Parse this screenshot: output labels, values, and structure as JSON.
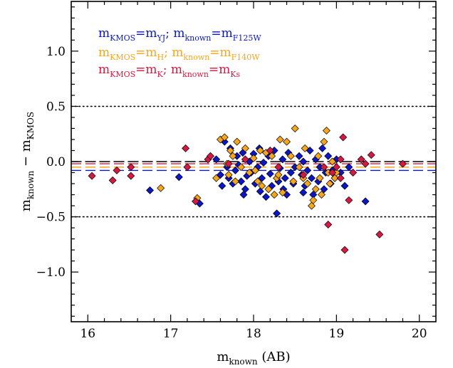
{
  "chart_data": {
    "type": "scatter",
    "title": "",
    "xlabel": "m_known (AB)",
    "ylabel": "m_known − m_KMOS",
    "xlim": [
      15.8,
      20.2
    ],
    "ylim": [
      -1.45,
      1.45
    ],
    "grid": false,
    "legend_position": "top-left",
    "x_ticks": [
      16,
      17,
      18,
      19,
      20
    ],
    "y_ticks": [
      -1.0,
      -0.5,
      0.0,
      0.5,
      1.0
    ],
    "x_tick_labels": [
      "16",
      "17",
      "18",
      "19",
      "20"
    ],
    "y_tick_labels": [
      "−1.0",
      "−0.5",
      "0.0",
      "0.5",
      "1.0"
    ],
    "reference_lines": [
      {
        "y": 0.5,
        "style": "dotted",
        "color": "#000000"
      },
      {
        "y": -0.5,
        "style": "dotted",
        "color": "#000000"
      },
      {
        "y": 0.0,
        "style": "dashed",
        "color": "#000000"
      }
    ],
    "series": [
      {
        "legend": {
          "lhs": "m",
          "lhs_sub": "KMOS",
          "rhs": "m",
          "rhs_sub": "YJ",
          "sep": ";",
          "lhs2": "m",
          "lhs2_sub": "known",
          "rhs2": "m",
          "rhs2_sub": "F125W"
        },
        "color": "#0a16c8",
        "median": -0.08,
        "points": [
          [
            16.75,
            -0.26
          ],
          [
            17.1,
            -0.14
          ],
          [
            17.35,
            -0.38
          ],
          [
            17.55,
            0.02
          ],
          [
            17.6,
            -0.12
          ],
          [
            17.62,
            -0.22
          ],
          [
            17.65,
            0.18
          ],
          [
            17.68,
            -0.05
          ],
          [
            17.7,
            -0.15
          ],
          [
            17.72,
            0.12
          ],
          [
            17.75,
            -0.2
          ],
          [
            17.78,
            -0.08
          ],
          [
            17.8,
            0.05
          ],
          [
            17.82,
            -0.03
          ],
          [
            17.85,
            -0.18
          ],
          [
            17.87,
            0.08
          ],
          [
            17.9,
            -0.25
          ],
          [
            17.92,
            -0.13
          ],
          [
            17.95,
            0.0
          ],
          [
            17.97,
            -0.1
          ],
          [
            18.0,
            0.07
          ],
          [
            18.02,
            -0.2
          ],
          [
            18.05,
            -0.05
          ],
          [
            18.07,
            0.12
          ],
          [
            18.1,
            -0.15
          ],
          [
            18.12,
            -0.01
          ],
          [
            18.15,
            -0.32
          ],
          [
            18.18,
            0.05
          ],
          [
            18.2,
            -0.11
          ],
          [
            18.22,
            -0.22
          ],
          [
            18.25,
            0.1
          ],
          [
            18.28,
            -0.47
          ],
          [
            18.3,
            -0.18
          ],
          [
            18.32,
            -0.06
          ],
          [
            18.35,
            0.02
          ],
          [
            18.38,
            -0.15
          ],
          [
            18.4,
            -0.3
          ],
          [
            18.42,
            0.08
          ],
          [
            18.45,
            -0.1
          ],
          [
            18.48,
            -0.2
          ],
          [
            18.5,
            -0.05
          ],
          [
            18.55,
            0.05
          ],
          [
            18.58,
            -0.12
          ],
          [
            18.6,
            0.0
          ],
          [
            18.62,
            -0.22
          ],
          [
            18.65,
            -0.08
          ],
          [
            18.68,
            0.1
          ],
          [
            18.7,
            -0.15
          ],
          [
            18.72,
            -0.3
          ],
          [
            18.75,
            0.02
          ],
          [
            18.78,
            -0.18
          ],
          [
            18.8,
            -0.05
          ],
          [
            18.83,
            0.12
          ],
          [
            18.85,
            -0.25
          ],
          [
            18.87,
            -0.1
          ],
          [
            18.9,
            0.05
          ],
          [
            18.93,
            -0.2
          ],
          [
            18.95,
            -0.08
          ],
          [
            18.98,
            -0.15
          ],
          [
            19.0,
            0.02
          ],
          [
            19.05,
            -0.1
          ],
          [
            19.1,
            -0.22
          ],
          [
            19.15,
            -0.05
          ],
          [
            19.35,
            -0.36
          ],
          [
            17.88,
            -0.3
          ],
          [
            18.08,
            -0.27
          ],
          [
            18.6,
            -0.28
          ],
          [
            18.36,
            -0.25
          ]
        ]
      },
      {
        "legend": {
          "lhs": "m",
          "lhs_sub": "KMOS",
          "rhs": "m",
          "rhs_sub": "H",
          "sep": ";",
          "lhs2": "m",
          "lhs2_sub": "known",
          "rhs2": "m",
          "rhs2_sub": "F140W"
        },
        "color": "#f5a61c",
        "median": -0.05,
        "points": [
          [
            16.88,
            -0.24
          ],
          [
            17.32,
            -0.33
          ],
          [
            17.55,
            -0.15
          ],
          [
            17.6,
            0.2
          ],
          [
            17.65,
            0.22
          ],
          [
            17.7,
            -0.12
          ],
          [
            17.72,
            0.1
          ],
          [
            17.75,
            0.05
          ],
          [
            17.78,
            -0.18
          ],
          [
            17.8,
            0.18
          ],
          [
            17.85,
            -0.05
          ],
          [
            17.9,
            0.12
          ],
          [
            17.95,
            -0.1
          ],
          [
            18.0,
            0.03
          ],
          [
            18.05,
            -0.18
          ],
          [
            18.08,
            0.1
          ],
          [
            18.1,
            -0.22
          ],
          [
            18.15,
            0.08
          ],
          [
            18.18,
            -0.25
          ],
          [
            18.22,
            0.05
          ],
          [
            18.25,
            -0.3
          ],
          [
            18.28,
            -0.15
          ],
          [
            18.32,
            0.2
          ],
          [
            18.35,
            -0.28
          ],
          [
            18.4,
            0.18
          ],
          [
            18.45,
            0.05
          ],
          [
            18.5,
            0.3
          ],
          [
            18.55,
            -0.05
          ],
          [
            18.6,
            -0.15
          ],
          [
            18.62,
            0.12
          ],
          [
            18.65,
            -0.2
          ],
          [
            18.7,
            -0.4
          ],
          [
            18.72,
            -0.35
          ],
          [
            18.75,
            -0.25
          ],
          [
            18.78,
            0.05
          ],
          [
            18.8,
            -0.15
          ],
          [
            18.82,
            -0.3
          ],
          [
            18.85,
            0.18
          ],
          [
            18.88,
            0.28
          ],
          [
            18.9,
            -0.1
          ],
          [
            18.92,
            -0.2
          ],
          [
            18.95,
            0.0
          ],
          [
            18.98,
            -0.15
          ],
          [
            19.0,
            -0.1
          ],
          [
            17.68,
            -0.02
          ],
          [
            18.02,
            -0.08
          ],
          [
            18.3,
            -0.12
          ],
          [
            18.48,
            -0.18
          ]
        ]
      },
      {
        "legend": {
          "lhs": "m",
          "lhs_sub": "KMOS",
          "rhs": "m",
          "rhs_sub": "K",
          "sep": ";",
          "lhs2": "m",
          "lhs2_sub": "known",
          "rhs2": "m",
          "rhs2_sub": "Ks"
        },
        "color": "#d61942",
        "median": -0.02,
        "points": [
          [
            16.05,
            -0.13
          ],
          [
            16.3,
            -0.17
          ],
          [
            16.35,
            -0.08
          ],
          [
            16.52,
            -0.05
          ],
          [
            16.52,
            -0.13
          ],
          [
            17.18,
            0.12
          ],
          [
            17.2,
            -0.05
          ],
          [
            17.3,
            -0.36
          ],
          [
            17.45,
            0.02
          ],
          [
            17.48,
            0.05
          ],
          [
            17.7,
            -0.02
          ],
          [
            17.9,
            0.02
          ],
          [
            18.2,
            0.1
          ],
          [
            18.3,
            -0.05
          ],
          [
            18.9,
            -0.57
          ],
          [
            18.95,
            -0.1
          ],
          [
            19.0,
            -0.05
          ],
          [
            19.05,
            0.02
          ],
          [
            19.1,
            -0.8
          ],
          [
            19.08,
            0.22
          ],
          [
            19.15,
            -0.35
          ],
          [
            19.2,
            -0.1
          ],
          [
            19.3,
            0.02
          ],
          [
            19.35,
            -0.02
          ],
          [
            19.42,
            0.06
          ],
          [
            19.52,
            -0.66
          ],
          [
            19.8,
            -0.02
          ],
          [
            18.6,
            -0.12
          ],
          [
            19.05,
            -0.15
          ],
          [
            18.85,
            -0.05
          ]
        ]
      }
    ]
  }
}
